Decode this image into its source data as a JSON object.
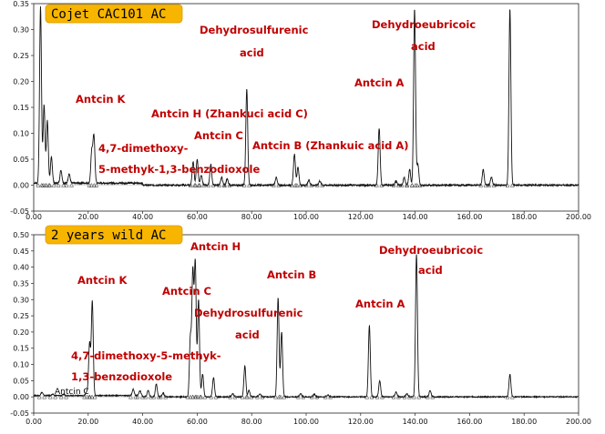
{
  "chart_data": [
    {
      "type": "line",
      "title": "Cojet CAC101 AC",
      "xlabel": "",
      "ylabel": "",
      "xlim": [
        0,
        200
      ],
      "ylim": [
        -0.05,
        0.35
      ],
      "x_ticks": [
        "0.00",
        "20.00",
        "40.00",
        "60.00",
        "80.00",
        "100.00",
        "120.00",
        "140.00",
        "160.00",
        "180.00",
        "200.00"
      ],
      "y_ticks": [
        "-0.05",
        "0.00",
        "0.05",
        "0.10",
        "0.15",
        "0.20",
        "0.25",
        "0.30",
        "0.35"
      ],
      "baseline": 0.0,
      "peaks": [
        {
          "x": 2.5,
          "y": 0.34
        },
        {
          "x": 3.8,
          "y": 0.15
        },
        {
          "x": 5.0,
          "y": 0.12
        },
        {
          "x": 6.5,
          "y": 0.05
        },
        {
          "x": 10,
          "y": 0.025
        },
        {
          "x": 13,
          "y": 0.018
        },
        {
          "x": 21.3,
          "y": 0.06
        },
        {
          "x": 22.1,
          "y": 0.09
        },
        {
          "x": 58.5,
          "y": 0.045
        },
        {
          "x": 60.0,
          "y": 0.05
        },
        {
          "x": 61.5,
          "y": 0.02
        },
        {
          "x": 65,
          "y": 0.04
        },
        {
          "x": 69,
          "y": 0.015
        },
        {
          "x": 71,
          "y": 0.012
        },
        {
          "x": 78.2,
          "y": 0.185
        },
        {
          "x": 89,
          "y": 0.015
        },
        {
          "x": 95.7,
          "y": 0.06
        },
        {
          "x": 97,
          "y": 0.035
        },
        {
          "x": 101,
          "y": 0.01
        },
        {
          "x": 105,
          "y": 0.008
        },
        {
          "x": 126.8,
          "y": 0.11
        },
        {
          "x": 133,
          "y": 0.008
        },
        {
          "x": 136,
          "y": 0.015
        },
        {
          "x": 138,
          "y": 0.03
        },
        {
          "x": 139.8,
          "y": 0.34
        },
        {
          "x": 141,
          "y": 0.04
        },
        {
          "x": 165,
          "y": 0.03
        },
        {
          "x": 168,
          "y": 0.015
        },
        {
          "x": 174.8,
          "y": 0.34
        }
      ],
      "annotations": [
        {
          "text": "Antcin K",
          "x": 21.5
        },
        {
          "text": "4,7-dimethoxy-",
          "x": 60
        },
        {
          "text": "5-methyk-1,3-benzodioxole",
          "x": 60
        },
        {
          "text": "Antcin H (Zhankuci acid C)",
          "x": 60
        },
        {
          "text": "Antcin C",
          "x": 65
        },
        {
          "text": "Dehydrosulfurenic",
          "x": 78
        },
        {
          "text": "acid",
          "x": 78
        },
        {
          "text": "Antcin B (Zhankuic acid A)",
          "x": 96
        },
        {
          "text": "Antcin A",
          "x": 127
        },
        {
          "text": "Dehydroeubricoic",
          "x": 140
        },
        {
          "text": "acid",
          "x": 140
        }
      ]
    },
    {
      "type": "line",
      "title": "2 years wild AC",
      "xlabel": "",
      "ylabel": "",
      "xlim": [
        0,
        200
      ],
      "ylim": [
        -0.05,
        0.5
      ],
      "x_ticks": [
        "0.00",
        "20.00",
        "40.00",
        "60.00",
        "80.00",
        "100.00",
        "120.00",
        "140.00",
        "160.00",
        "180.00",
        "200.00"
      ],
      "y_ticks": [
        "-0.05",
        "0.00",
        "0.05",
        "0.10",
        "0.15",
        "0.20",
        "0.25",
        "0.30",
        "0.35",
        "0.40",
        "0.45",
        "0.50"
      ],
      "baseline": 0.0,
      "peaks": [
        {
          "x": 3,
          "y": 0.01
        },
        {
          "x": 7,
          "y": 0.004
        },
        {
          "x": 11,
          "y": 0.004
        },
        {
          "x": 19.5,
          "y": 0.012
        },
        {
          "x": 20.5,
          "y": 0.16
        },
        {
          "x": 21.5,
          "y": 0.29
        },
        {
          "x": 36.5,
          "y": 0.02
        },
        {
          "x": 39,
          "y": 0.015
        },
        {
          "x": 42,
          "y": 0.02
        },
        {
          "x": 45,
          "y": 0.04
        },
        {
          "x": 47.5,
          "y": 0.012
        },
        {
          "x": 57.5,
          "y": 0.18
        },
        {
          "x": 58.4,
          "y": 0.38
        },
        {
          "x": 59.3,
          "y": 0.41
        },
        {
          "x": 60.5,
          "y": 0.3
        },
        {
          "x": 62,
          "y": 0.07
        },
        {
          "x": 66,
          "y": 0.06
        },
        {
          "x": 73,
          "y": 0.01
        },
        {
          "x": 77.5,
          "y": 0.095
        },
        {
          "x": 79,
          "y": 0.02
        },
        {
          "x": 83,
          "y": 0.01
        },
        {
          "x": 89.7,
          "y": 0.305
        },
        {
          "x": 91,
          "y": 0.2
        },
        {
          "x": 98,
          "y": 0.01
        },
        {
          "x": 103,
          "y": 0.008
        },
        {
          "x": 108,
          "y": 0.006
        },
        {
          "x": 123.2,
          "y": 0.22
        },
        {
          "x": 127,
          "y": 0.05
        },
        {
          "x": 133,
          "y": 0.015
        },
        {
          "x": 137,
          "y": 0.01
        },
        {
          "x": 140.5,
          "y": 0.44
        },
        {
          "x": 145.5,
          "y": 0.02
        },
        {
          "x": 174.8,
          "y": 0.07
        }
      ],
      "annotations": [
        {
          "text": "Antcin K",
          "x": 21.5
        },
        {
          "text": "4,7-dimethoxy-5-methyk-",
          "x": 21
        },
        {
          "text": "1,3-benzodioxole",
          "x": 21
        },
        {
          "text": "Antcin C",
          "x": 58
        },
        {
          "text": "Antcin C",
          "x": 5
        },
        {
          "text": "Antcin H",
          "x": 59.3
        },
        {
          "text": "Dehydrosulfurenic",
          "x": 78
        },
        {
          "text": "acid",
          "x": 78
        },
        {
          "text": "Antcin B",
          "x": 90
        },
        {
          "text": "Antcin A",
          "x": 123
        },
        {
          "text": "Dehydroeubricoic",
          "x": 140
        },
        {
          "text": "acid",
          "x": 140
        }
      ]
    }
  ],
  "colors": {
    "trace": "#111111",
    "annotation": "#c00000",
    "title_bg": "#f7b500",
    "axis": "#222222"
  }
}
